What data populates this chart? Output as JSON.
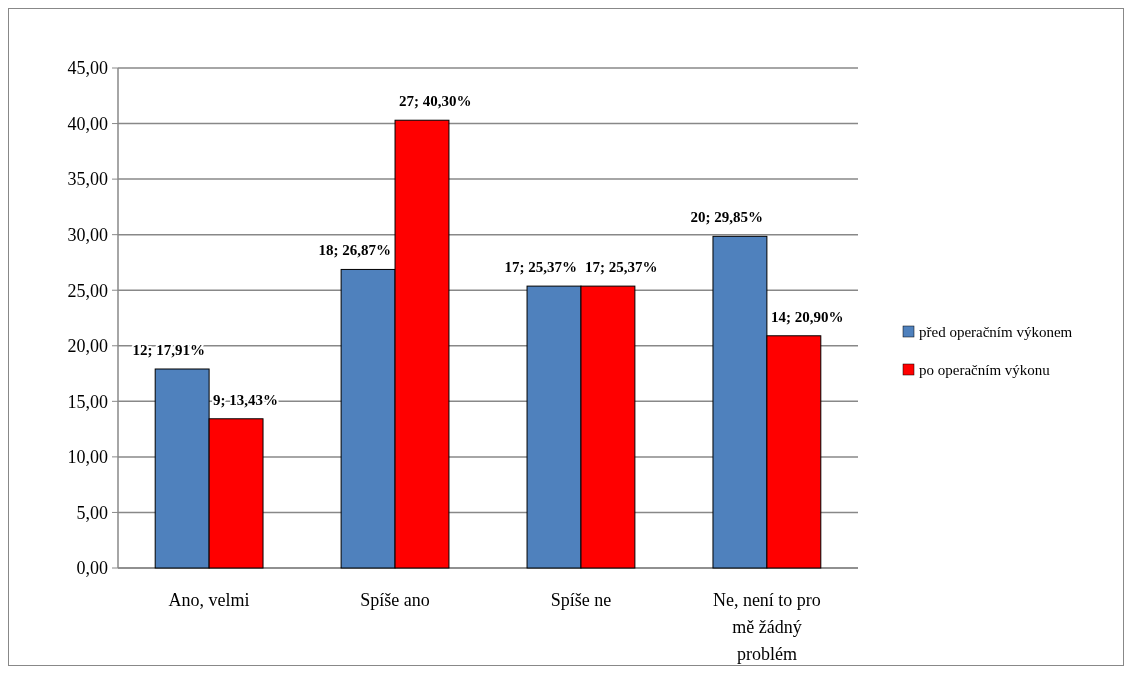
{
  "chart_data": {
    "type": "bar",
    "categories": [
      "Ano, velmi",
      "Spíše ano",
      "Spíše ne",
      "Ne, není to pro mě žádný problém"
    ],
    "series": [
      {
        "name": "před operačním výkonem",
        "color": "#4f81bd",
        "values": [
          17.91,
          26.87,
          25.37,
          29.85
        ],
        "value_labels": [
          "12; 17,91%",
          "18; 26,87%",
          "17; 25,37%",
          "20; 29,85%"
        ]
      },
      {
        "name": "po operačním výkonu",
        "color": "#ff0000",
        "values": [
          13.43,
          40.3,
          25.37,
          20.9
        ],
        "value_labels": [
          "9; 13,43%",
          "27; 40,30%",
          "17; 25,37%",
          "14; 20,90%"
        ]
      }
    ],
    "ylim": [
      0,
      45
    ],
    "yticks": [
      {
        "value": 0,
        "label": "0,00"
      },
      {
        "value": 5,
        "label": "5,00"
      },
      {
        "value": 10,
        "label": "10,00"
      },
      {
        "value": 15,
        "label": "15,00"
      },
      {
        "value": 20,
        "label": "20,00"
      },
      {
        "value": 25,
        "label": "25,00"
      },
      {
        "value": 30,
        "label": "30,00"
      },
      {
        "value": 35,
        "label": "35,00"
      },
      {
        "value": 40,
        "label": "40,00"
      },
      {
        "value": 45,
        "label": "45,00"
      }
    ],
    "grid": "y",
    "legend": "right"
  }
}
